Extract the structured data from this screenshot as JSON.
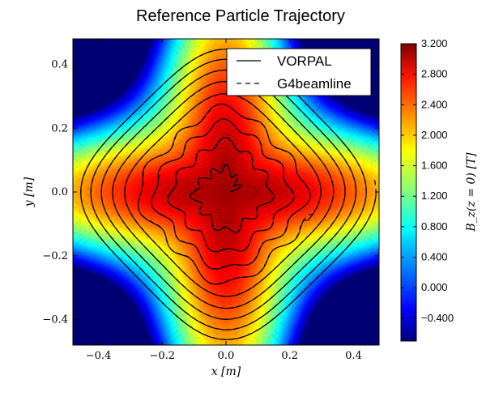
{
  "chart_data": {
    "type": "heatmap",
    "title": "Reference Particle Trajectory",
    "xlabel": "x [m]",
    "ylabel": "y [m]",
    "xlim": [
      -0.48,
      0.48
    ],
    "ylim": [
      -0.48,
      0.48
    ],
    "xticks": [
      -0.4,
      -0.2,
      0.0,
      0.2,
      0.4
    ],
    "yticks": [
      -0.4,
      -0.2,
      0.0,
      0.2,
      0.4
    ],
    "xtick_labels": [
      "−0.4",
      "−0.2",
      "0.0",
      "0.2",
      "0.4"
    ],
    "ytick_labels": [
      "−0.4",
      "−0.2",
      "0.0",
      "0.2",
      "0.4"
    ],
    "field": {
      "description": "B_z(z=0) contour map",
      "center_value": 3.0,
      "max_value": 3.2,
      "min_value": -0.7,
      "colormap": "jet"
    },
    "colorbar": {
      "label": "B_z(z = 0) [T]",
      "vmin": -0.7,
      "vmax": 3.2,
      "ticks": [
        3.2,
        2.8,
        2.4,
        2.0,
        1.6,
        1.2,
        0.8,
        0.4,
        0.0,
        -0.4
      ],
      "tick_labels": [
        "3.200",
        "2.800",
        "2.400",
        "2.000",
        "1.600",
        "1.200",
        "0.800",
        "0.400",
        "0.000",
        "−0.400"
      ]
    },
    "series": [
      {
        "name": "VORPAL",
        "style": "solid",
        "color": "#000000",
        "shape": "inspiral",
        "outer_radius_m": 0.41,
        "turns": 9
      },
      {
        "name": "G4beamline",
        "style": "dashed",
        "color": "#000000",
        "shape": "inspiral",
        "outer_radius_m": 0.41,
        "turns": 9
      }
    ],
    "legend": {
      "location": "top-right",
      "entries": [
        "VORPAL",
        "G4beamline"
      ]
    }
  }
}
